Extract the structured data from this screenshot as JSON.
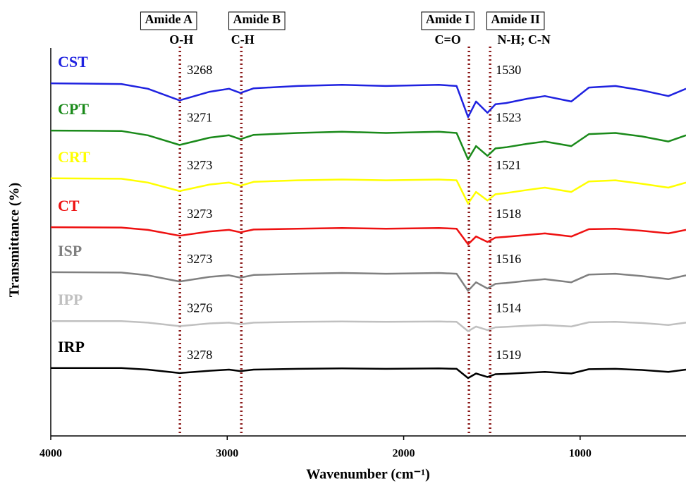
{
  "chart_data": {
    "type": "line",
    "x_label": "Wavenumber (cm⁻¹)",
    "y_label": "Transmittance (%)",
    "xlim": [
      4000,
      400
    ],
    "ylim": [
      0,
      100
    ],
    "xticks": [
      4000,
      3000,
      2000,
      1000
    ],
    "x": [
      4000,
      3600,
      3450,
      3270,
      3100,
      2990,
      2925,
      2850,
      2600,
      2350,
      2100,
      1800,
      1700,
      1635,
      1590,
      1525,
      1480,
      1420,
      1300,
      1200,
      1050,
      950,
      800,
      650,
      500,
      400
    ],
    "reference_lines": [
      {
        "x": 3268,
        "label": "Amide A",
        "sublabel": "O-H"
      },
      {
        "x": 2920,
        "label": "Amide B",
        "sublabel": "C-H"
      },
      {
        "x": 1630,
        "label": "Amide I",
        "sublabel": "C=O"
      },
      {
        "x": 1510,
        "label": "Amide II",
        "sublabel": "N-H; C-N"
      }
    ],
    "series": [
      {
        "name": "CST",
        "color": "#1f22e0",
        "peaks": [
          3268,
          1530
        ],
        "values": [
          90.9,
          90.7,
          89.5,
          86.5,
          88.7,
          89.5,
          88.4,
          89.6,
          90.2,
          90.5,
          90.2,
          90.5,
          90.2,
          82.2,
          86.2,
          83.3,
          85.5,
          85.8,
          86.9,
          87.6,
          86.2,
          89.8,
          90.2,
          89.1,
          87.6,
          89.5
        ]
      },
      {
        "name": "CPT",
        "color": "#1a8a1a",
        "peaks": [
          3271,
          1523
        ],
        "values": [
          78.7,
          78.6,
          77.5,
          75.0,
          76.9,
          77.5,
          76.5,
          77.6,
          78.1,
          78.4,
          78.1,
          78.4,
          78.1,
          71.3,
          74.7,
          72.2,
          74.1,
          74.4,
          75.3,
          75.9,
          74.7,
          77.8,
          78.1,
          77.2,
          75.9,
          77.5
        ]
      },
      {
        "name": "CRT",
        "color": "#ffff00",
        "peaks": [
          3273,
          1521
        ],
        "values": [
          66.4,
          66.3,
          65.3,
          63.1,
          64.8,
          65.3,
          64.5,
          65.5,
          65.9,
          66.1,
          65.9,
          66.1,
          65.9,
          59.9,
          62.9,
          60.7,
          62.3,
          62.6,
          63.4,
          64.0,
          62.9,
          65.6,
          65.9,
          65.0,
          64.0,
          65.3
        ]
      },
      {
        "name": "CT",
        "color": "#ee1111",
        "peaks": [
          3273,
          1518
        ],
        "values": [
          53.8,
          53.7,
          53.1,
          51.6,
          52.7,
          53.1,
          52.5,
          53.2,
          53.4,
          53.6,
          53.4,
          53.6,
          53.4,
          49.4,
          51.4,
          50.0,
          51.1,
          51.3,
          51.8,
          52.2,
          51.4,
          53.3,
          53.4,
          52.9,
          52.2,
          53.1
        ]
      },
      {
        "name": "ISP",
        "color": "#808080",
        "peaks": [
          3273,
          1516
        ],
        "values": [
          42.2,
          42.1,
          41.4,
          39.8,
          41.0,
          41.4,
          40.8,
          41.5,
          41.8,
          42.0,
          41.8,
          42.0,
          41.8,
          37.4,
          39.6,
          38.0,
          39.2,
          39.4,
          40.0,
          40.4,
          39.6,
          41.6,
          41.8,
          41.2,
          40.4,
          41.4
        ]
      },
      {
        "name": "IPP",
        "color": "#c0c0c0",
        "peaks": [
          3276,
          1514
        ],
        "values": [
          29.6,
          29.6,
          29.2,
          28.3,
          29.0,
          29.2,
          28.8,
          29.2,
          29.4,
          29.5,
          29.4,
          29.5,
          29.4,
          27.0,
          28.2,
          27.3,
          28.0,
          28.1,
          28.4,
          28.6,
          28.2,
          29.3,
          29.4,
          29.1,
          28.6,
          29.2
        ]
      },
      {
        "name": "IRP",
        "color": "#000000",
        "peaks": [
          3278,
          1519
        ],
        "values": [
          17.5,
          17.5,
          17.1,
          16.2,
          16.8,
          17.1,
          16.7,
          17.1,
          17.3,
          17.4,
          17.3,
          17.4,
          17.3,
          14.9,
          16.1,
          15.2,
          15.9,
          16.0,
          16.3,
          16.5,
          16.1,
          17.2,
          17.3,
          17.0,
          16.5,
          17.1
        ]
      }
    ]
  }
}
